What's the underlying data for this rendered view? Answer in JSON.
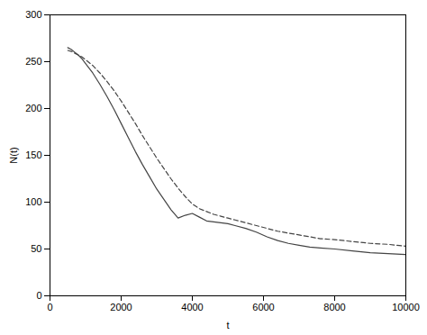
{
  "chart_data": {
    "type": "line",
    "xlabel": "t",
    "ylabel": "N(t)",
    "xlim": [
      0,
      10000
    ],
    "ylim": [
      0,
      300
    ],
    "xticks": [
      0,
      2000,
      4000,
      6000,
      8000,
      10000
    ],
    "yticks": [
      0,
      50,
      100,
      150,
      200,
      250,
      300
    ],
    "x": [
      500,
      600,
      700,
      800,
      900,
      1000,
      1200,
      1400,
      1600,
      1800,
      2000,
      2200,
      2400,
      2600,
      2800,
      3000,
      3200,
      3400,
      3600,
      3800,
      4000,
      4200,
      4400,
      4600,
      4800,
      5000,
      5200,
      5500,
      5800,
      6100,
      6400,
      6700,
      7000,
      7300,
      7600,
      8000,
      8500,
      9000,
      9500,
      10000
    ],
    "series": [
      {
        "color": "#444444",
        "line_style": "solid",
        "values": [
          265,
          263,
          260,
          257,
          253,
          248,
          238,
          226,
          213,
          199,
          184,
          169,
          154,
          140,
          127,
          114,
          103,
          92,
          83,
          86,
          88,
          84,
          80,
          79,
          78,
          77,
          75,
          72,
          68,
          63,
          59,
          56,
          54,
          52,
          51,
          50,
          48,
          46,
          45,
          44
        ]
      },
      {
        "color": "#444444",
        "line_style": "dashed",
        "values": [
          262,
          261,
          259,
          257,
          255,
          252,
          246,
          238,
          229,
          219,
          208,
          196,
          184,
          171,
          159,
          147,
          136,
          125,
          115,
          106,
          98,
          93,
          90,
          87,
          85,
          83,
          81,
          78,
          75,
          72,
          69,
          67,
          65,
          63,
          61,
          60,
          58,
          56,
          55,
          53
        ]
      }
    ],
    "grid": false
  }
}
